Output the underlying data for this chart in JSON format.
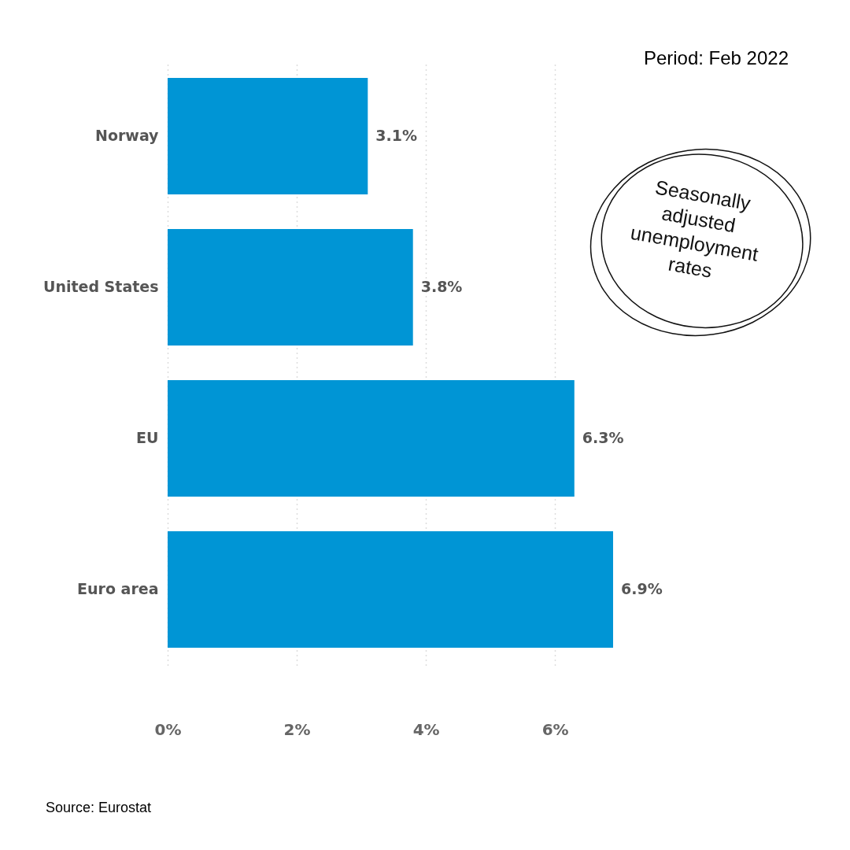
{
  "chart_data": {
    "type": "bar",
    "orientation": "horizontal",
    "title": "Period: Feb 2022",
    "categories": [
      "Norway",
      "United States",
      "EU",
      "Euro area"
    ],
    "values": [
      3.1,
      3.8,
      6.3,
      6.9
    ],
    "value_labels": [
      "3.1%",
      "3.8%",
      "6.3%",
      "6.9%"
    ],
    "color": "#0095d5",
    "xlim": [
      0,
      6.9
    ],
    "xticks": [
      {
        "value": 0,
        "label": "0%"
      },
      {
        "value": 2,
        "label": "2%"
      },
      {
        "value": 4,
        "label": "4%"
      },
      {
        "value": 6,
        "label": "6%"
      }
    ],
    "grid": "x",
    "annotations": [
      "Seasonally adjusted unemployment rates",
      "Source: Eurostat"
    ]
  }
}
